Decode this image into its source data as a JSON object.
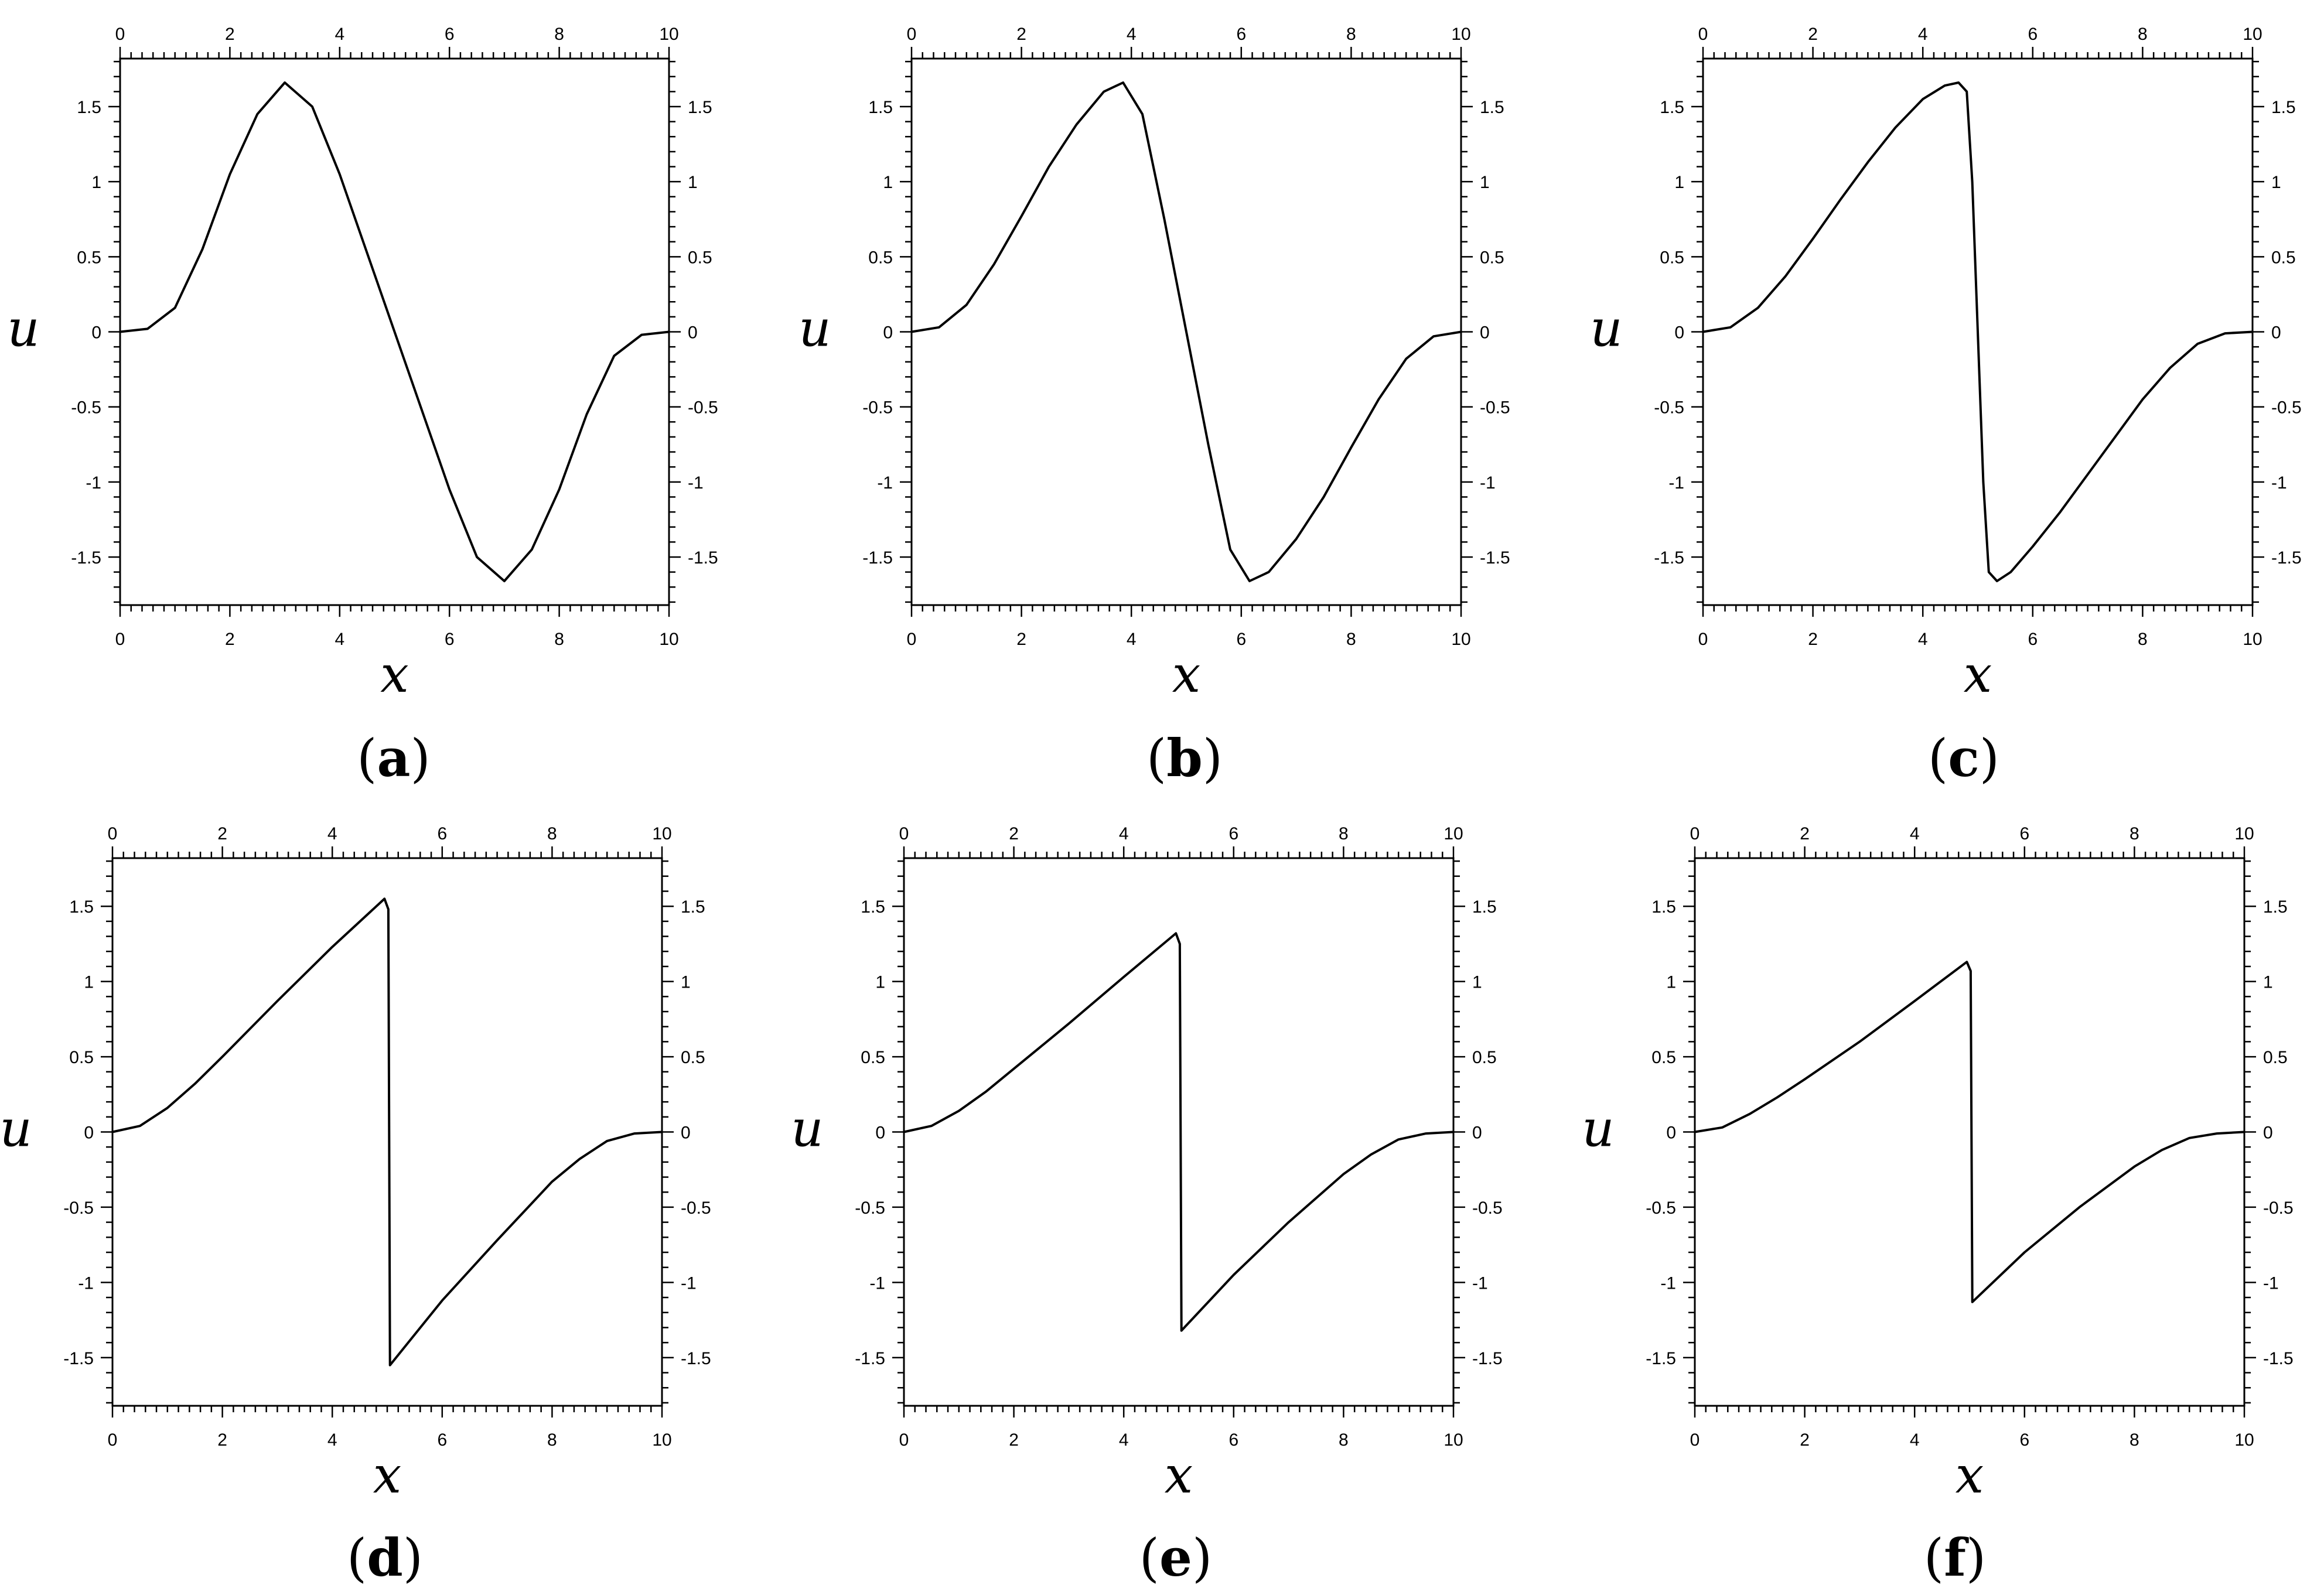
{
  "figure": {
    "panels": [
      {
        "label": "a"
      },
      {
        "label": "b"
      },
      {
        "label": "c"
      },
      {
        "label": "d"
      },
      {
        "label": "e"
      },
      {
        "label": "f"
      }
    ]
  },
  "chart_data": [
    {
      "panel": "a",
      "type": "line",
      "xlabel": "x",
      "ylabel": "u",
      "xlim": [
        0,
        10
      ],
      "ylim": [
        -1.82,
        1.82
      ],
      "xticks": [
        "0",
        "2",
        "4",
        "6",
        "8",
        "10"
      ],
      "yticks": [
        "-1.5",
        "-1",
        "-0.5",
        "0",
        "0.5",
        "1",
        "1.5"
      ],
      "series": [
        {
          "name": "u",
          "x": [
            0,
            0.5,
            1,
            1.5,
            2,
            2.5,
            3,
            3.5,
            4,
            5,
            6,
            6.5,
            7,
            7.5,
            8,
            8.5,
            9,
            9.5,
            10
          ],
          "y": [
            0,
            0.02,
            0.16,
            0.55,
            1.05,
            1.45,
            1.66,
            1.5,
            1.05,
            0,
            -1.05,
            -1.5,
            -1.66,
            -1.45,
            -1.05,
            -0.55,
            -0.16,
            -0.02,
            0
          ]
        }
      ]
    },
    {
      "panel": "b",
      "type": "line",
      "xlabel": "x",
      "ylabel": "u",
      "xlim": [
        0,
        10
      ],
      "ylim": [
        -1.82,
        1.82
      ],
      "xticks": [
        "0",
        "2",
        "4",
        "6",
        "8",
        "10"
      ],
      "yticks": [
        "-1.5",
        "-1",
        "-0.5",
        "0",
        "0.5",
        "1",
        "1.5"
      ],
      "series": [
        {
          "name": "u",
          "x": [
            0,
            0.5,
            1,
            1.5,
            2,
            2.5,
            3,
            3.5,
            3.85,
            4.2,
            4.6,
            5,
            5.4,
            5.8,
            6.15,
            6.5,
            7,
            7.5,
            8,
            8.5,
            9,
            9.5,
            10
          ],
          "y": [
            0,
            0.03,
            0.18,
            0.45,
            0.77,
            1.1,
            1.38,
            1.6,
            1.66,
            1.45,
            0.75,
            0,
            -0.75,
            -1.45,
            -1.66,
            -1.6,
            -1.38,
            -1.1,
            -0.77,
            -0.45,
            -0.18,
            -0.03,
            0
          ]
        }
      ]
    },
    {
      "panel": "c",
      "type": "line",
      "xlabel": "x",
      "ylabel": "u",
      "xlim": [
        0,
        10
      ],
      "ylim": [
        -1.82,
        1.82
      ],
      "xticks": [
        "0",
        "2",
        "4",
        "6",
        "8",
        "10"
      ],
      "yticks": [
        "-1.5",
        "-1",
        "-0.5",
        "0",
        "0.5",
        "1",
        "1.5"
      ],
      "series": [
        {
          "name": "u",
          "x": [
            0,
            0.5,
            1,
            1.5,
            2,
            2.5,
            3,
            3.5,
            4,
            4.4,
            4.65,
            4.8,
            4.9,
            5,
            5.1,
            5.2,
            5.35,
            5.6,
            6,
            6.5,
            7,
            7.5,
            8,
            8.5,
            9,
            9.5,
            10
          ],
          "y": [
            0,
            0.03,
            0.16,
            0.37,
            0.62,
            0.88,
            1.13,
            1.36,
            1.55,
            1.64,
            1.66,
            1.6,
            1.0,
            0,
            -1.0,
            -1.6,
            -1.66,
            -1.6,
            -1.43,
            -1.2,
            -0.95,
            -0.7,
            -0.45,
            -0.24,
            -0.08,
            -0.01,
            0
          ]
        }
      ]
    },
    {
      "panel": "d",
      "type": "line",
      "xlabel": "x",
      "ylabel": "u",
      "xlim": [
        0,
        10
      ],
      "ylim": [
        -1.82,
        1.82
      ],
      "xticks": [
        "0",
        "2",
        "4",
        "6",
        "8",
        "10"
      ],
      "yticks": [
        "-1.5",
        "-1",
        "-0.5",
        "0",
        "0.5",
        "1",
        "1.5"
      ],
      "series": [
        {
          "name": "u",
          "x": [
            0,
            0.5,
            1,
            1.5,
            2,
            3,
            4,
            4.95,
            5.02,
            5.05,
            6,
            7,
            8,
            8.5,
            9,
            9.5,
            10
          ],
          "y": [
            0,
            0.04,
            0.16,
            0.32,
            0.5,
            0.87,
            1.23,
            1.55,
            1.48,
            -1.55,
            -1.12,
            -0.72,
            -0.33,
            -0.18,
            -0.06,
            -0.01,
            0
          ]
        }
      ]
    },
    {
      "panel": "e",
      "type": "line",
      "xlabel": "x",
      "ylabel": "u",
      "xlim": [
        0,
        10
      ],
      "ylim": [
        -1.82,
        1.82
      ],
      "xticks": [
        "0",
        "2",
        "4",
        "6",
        "8",
        "10"
      ],
      "yticks": [
        "-1.5",
        "-1",
        "-0.5",
        "0",
        "0.5",
        "1",
        "1.5"
      ],
      "series": [
        {
          "name": "u",
          "x": [
            0,
            0.5,
            1,
            1.5,
            2,
            3,
            4,
            4.95,
            5.02,
            5.05,
            6,
            7,
            8,
            8.5,
            9,
            9.5,
            10
          ],
          "y": [
            0,
            0.04,
            0.14,
            0.27,
            0.42,
            0.72,
            1.03,
            1.32,
            1.25,
            -1.32,
            -0.95,
            -0.6,
            -0.28,
            -0.15,
            -0.05,
            -0.01,
            0
          ]
        }
      ]
    },
    {
      "panel": "f",
      "type": "line",
      "xlabel": "x",
      "ylabel": "u",
      "xlim": [
        0,
        10
      ],
      "ylim": [
        -1.82,
        1.82
      ],
      "xticks": [
        "0",
        "2",
        "4",
        "6",
        "8",
        "10"
      ],
      "yticks": [
        "-1.5",
        "-1",
        "-0.5",
        "0",
        "0.5",
        "1",
        "1.5"
      ],
      "series": [
        {
          "name": "u",
          "x": [
            0,
            0.5,
            1,
            1.5,
            2,
            3,
            4,
            4.95,
            5.02,
            5.05,
            6,
            7,
            8,
            8.5,
            9,
            9.5,
            10
          ],
          "y": [
            0,
            0.03,
            0.12,
            0.23,
            0.35,
            0.6,
            0.87,
            1.13,
            1.07,
            -1.13,
            -0.8,
            -0.5,
            -0.23,
            -0.12,
            -0.04,
            -0.01,
            0
          ]
        }
      ]
    }
  ]
}
